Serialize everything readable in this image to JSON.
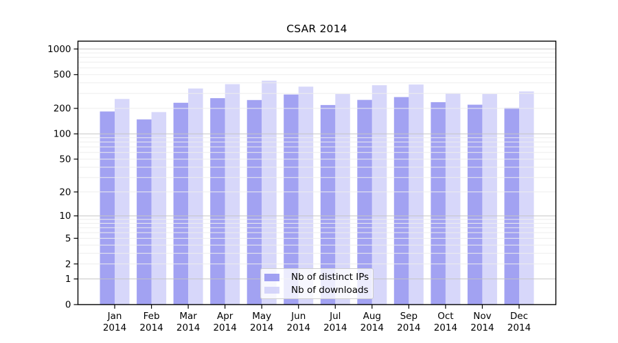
{
  "chart_data": {
    "type": "bar",
    "title": "CSAR 2014",
    "categories": [
      "Jan",
      "Feb",
      "Mar",
      "Apr",
      "May",
      "Jun",
      "Jul",
      "Aug",
      "Sep",
      "Oct",
      "Nov",
      "Dec"
    ],
    "x_year": "2014",
    "series": [
      {
        "name": "Nb of distinct IPs",
        "color": "#8888ee",
        "values": [
          184,
          148,
          233,
          264,
          251,
          292,
          219,
          252,
          272,
          237,
          221,
          203
        ]
      },
      {
        "name": "Nb of downloads",
        "color": "#ccccf8",
        "values": [
          258,
          181,
          343,
          386,
          424,
          361,
          295,
          375,
          382,
          302,
          295,
          317
        ]
      }
    ],
    "bar_opacity": 0.78,
    "yscale": "log1p",
    "ylim": [
      0,
      1236
    ],
    "yticks": [
      0,
      1,
      2,
      5,
      10,
      20,
      50,
      100,
      200,
      500,
      1000
    ],
    "minor_grid_values": [
      2,
      3,
      4,
      5,
      6,
      7,
      8,
      9,
      20,
      30,
      40,
      50,
      60,
      70,
      80,
      90,
      200,
      300,
      400,
      500,
      600,
      700,
      800,
      900
    ],
    "major_grid_values": [
      1,
      10,
      100,
      1000
    ],
    "grid": "both, drawn over bars",
    "legend_position": "lower center",
    "colors": {
      "major_grid": "#c5c5c5",
      "minor_grid": "#ededed",
      "axis": "#000000",
      "text": "#000000",
      "background": "#ffffff"
    }
  }
}
